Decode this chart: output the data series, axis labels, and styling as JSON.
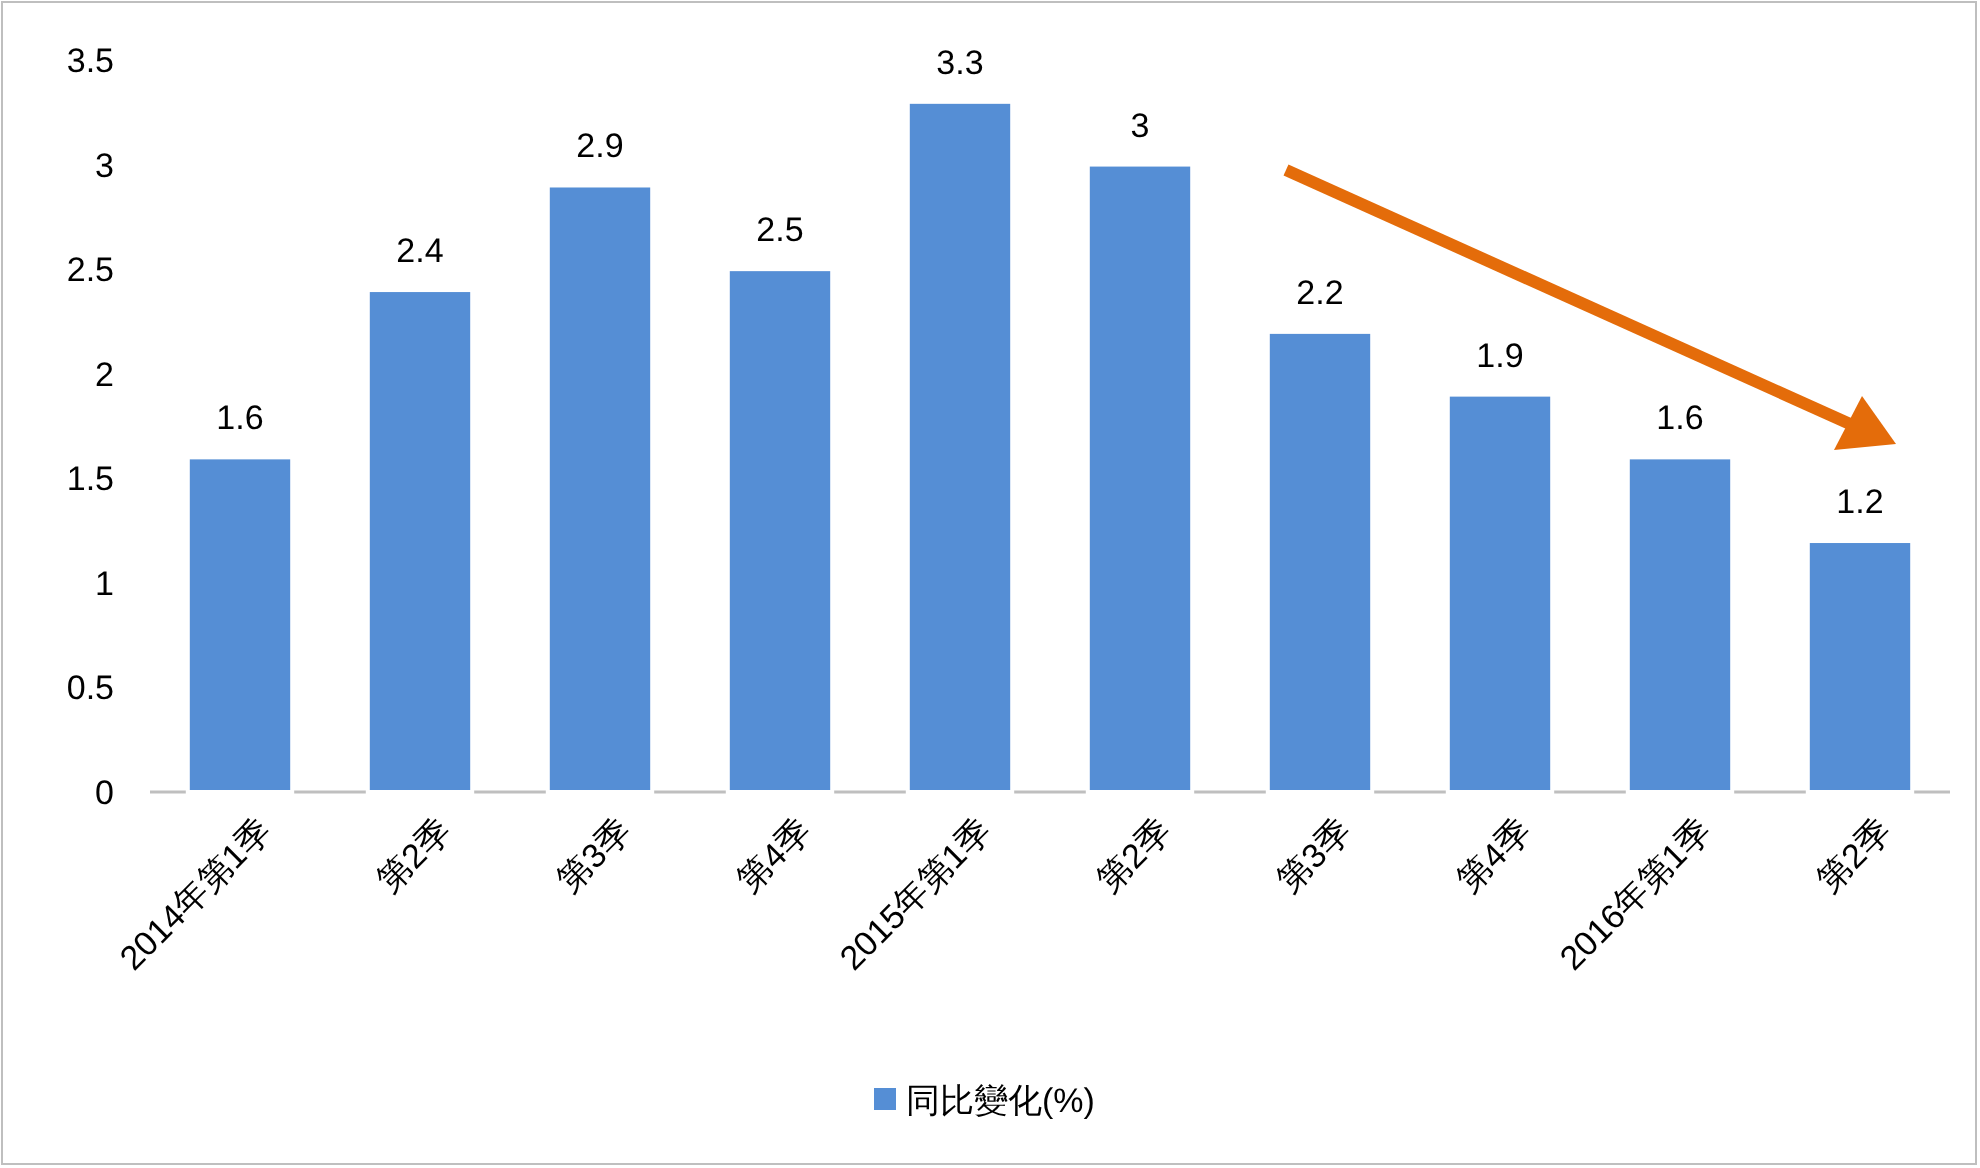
{
  "chart_data": {
    "type": "bar",
    "categories": [
      "2014年第1季",
      "第2季",
      "第3季",
      "第4季",
      "2015年第1季",
      "第2季",
      "第3季",
      "第4季",
      "2016年第1季",
      "第2季"
    ],
    "series": [
      {
        "name": "同比變化(%)",
        "color": "#558ed5",
        "values": [
          1.6,
          2.4,
          2.9,
          2.5,
          3.3,
          3,
          2.2,
          1.9,
          1.6,
          1.2
        ]
      }
    ],
    "ylim": [
      0,
      3.5
    ],
    "yticks": [
      0,
      0.5,
      1,
      1.5,
      2,
      2.5,
      3,
      3.5
    ],
    "data_labels": true,
    "legend": "bottom",
    "grid": false
  }
}
